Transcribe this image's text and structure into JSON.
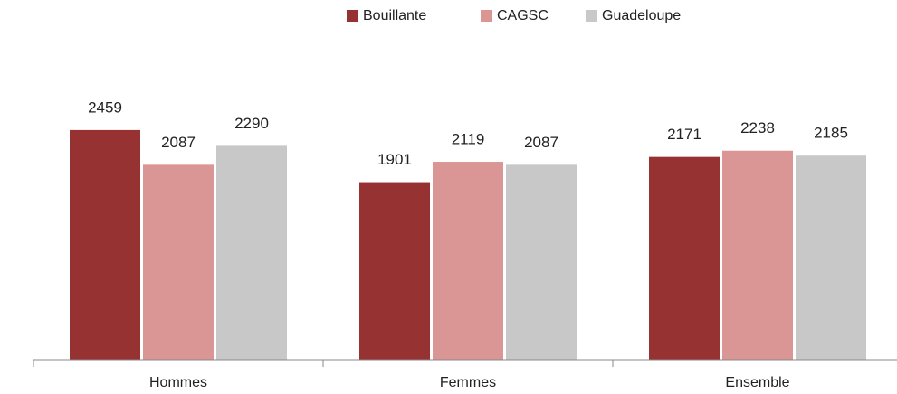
{
  "chart_data": {
    "type": "bar",
    "categories": [
      "Hommes",
      "Femmes",
      "Ensemble"
    ],
    "series": [
      {
        "name": "Bouillante",
        "color": "#963232",
        "values": [
          2459,
          1901,
          2171
        ]
      },
      {
        "name": "CAGSC",
        "color": "#da9694",
        "values": [
          2087,
          2119,
          2238
        ]
      },
      {
        "name": "Guadeloupe",
        "color": "#c8c8c8",
        "values": [
          2290,
          2087,
          2185
        ]
      }
    ],
    "ylim": [
      0,
      3000
    ],
    "legend": "top"
  }
}
